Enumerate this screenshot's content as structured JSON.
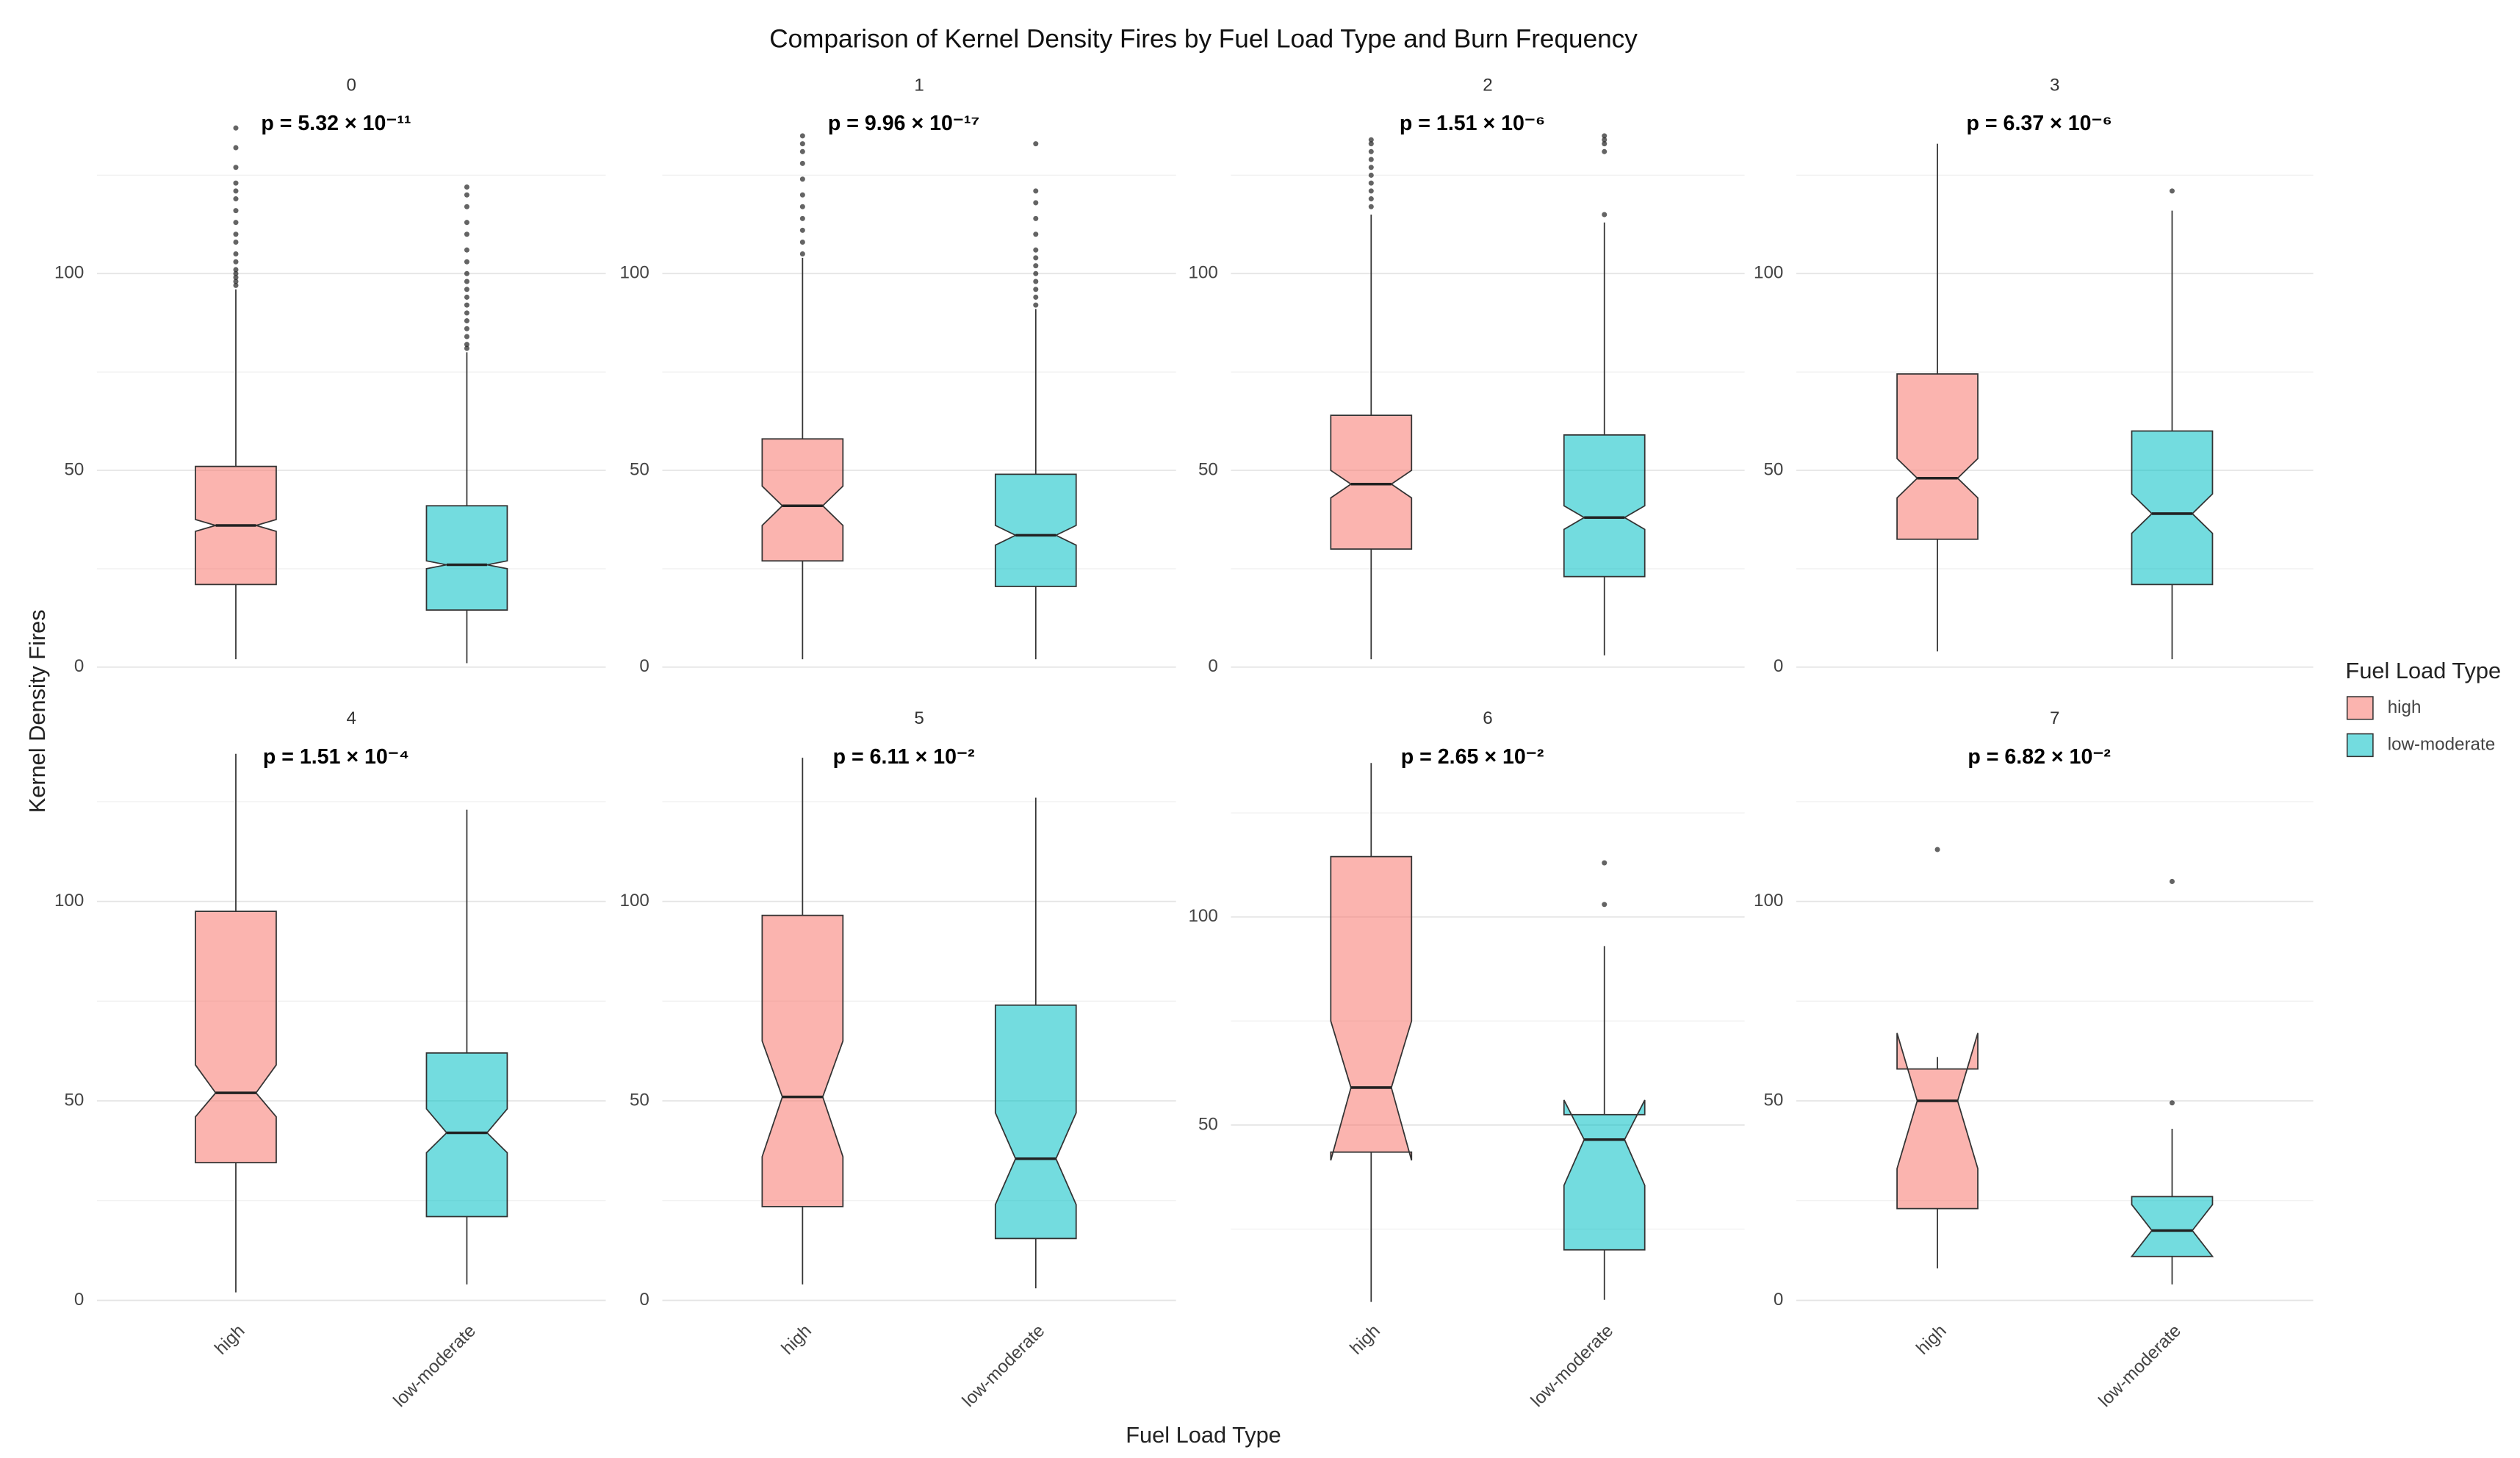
{
  "chart_data": {
    "type": "box",
    "title": "Comparison of Kernel Density Fires by Fuel Load Type and Burn Frequency",
    "xlabel": "Fuel Load Type",
    "ylabel": "Kernel Density Fires",
    "legend_title": "Fuel Load Type",
    "categories": [
      "high",
      "low-moderate"
    ],
    "series": [
      {
        "name": "high",
        "color": "#F8766D"
      },
      {
        "name": "low-moderate",
        "color": "#00BFC4"
      }
    ],
    "grid": true,
    "panels": [
      {
        "title": "0",
        "annotation": "p = 5.32 × 10⁻¹¹",
        "ylim": [
          -3,
          144
        ],
        "yticks": [
          0,
          50,
          100
        ],
        "boxes": [
          {
            "min": 2,
            "q1": 21,
            "notch_low": 34.5,
            "median": 36,
            "notch_high": 37.5,
            "q3": 51,
            "max": 96,
            "outliers": [
              97,
              98,
              99,
              100,
              101,
              103,
              105,
              108,
              110,
              113,
              116,
              119,
              121,
              123,
              127,
              132,
              137
            ]
          },
          {
            "min": 1,
            "q1": 14.5,
            "notch_low": 25,
            "median": 26,
            "notch_high": 27,
            "q3": 41,
            "max": 80,
            "outliers": [
              81,
              82,
              84,
              86,
              88,
              90,
              92,
              94,
              96,
              98,
              100,
              103,
              106,
              110,
              113,
              117,
              120,
              122
            ]
          }
        ]
      },
      {
        "title": "1",
        "annotation": "p = 9.96 × 10⁻¹⁷",
        "ylim": [
          -3,
          144
        ],
        "yticks": [
          0,
          50,
          100
        ],
        "boxes": [
          {
            "min": 2,
            "q1": 27,
            "notch_low": 36,
            "median": 41,
            "notch_high": 46,
            "q3": 58,
            "max": 104,
            "outliers": [
              105,
              108,
              111,
              114,
              117,
              120,
              124,
              128,
              131,
              133,
              135
            ]
          },
          {
            "min": 2,
            "q1": 20.5,
            "notch_low": 31,
            "median": 33.5,
            "notch_high": 36,
            "q3": 49,
            "max": 91,
            "outliers": [
              92,
              94,
              96,
              98,
              100,
              102,
              104,
              106,
              110,
              114,
              118,
              121,
              133
            ]
          }
        ]
      },
      {
        "title": "2",
        "annotation": "p = 1.51 × 10⁻⁶",
        "ylim": [
          -3,
          144
        ],
        "yticks": [
          0,
          50,
          100
        ],
        "boxes": [
          {
            "min": 2,
            "q1": 30,
            "notch_low": 43,
            "median": 46.5,
            "notch_high": 50,
            "q3": 64,
            "max": 115,
            "outliers": [
              117,
              119,
              121,
              123,
              125,
              127,
              129,
              131,
              133,
              134
            ]
          },
          {
            "min": 3,
            "q1": 23,
            "notch_low": 35,
            "median": 38,
            "notch_high": 41,
            "q3": 59,
            "max": 113,
            "outliers": [
              115,
              131,
              133,
              134,
              135
            ]
          }
        ]
      },
      {
        "title": "3",
        "annotation": "p = 6.37 × 10⁻⁶",
        "ylim": [
          -3,
          144
        ],
        "yticks": [
          0,
          50,
          100
        ],
        "boxes": [
          {
            "min": 4,
            "q1": 32.5,
            "notch_low": 43,
            "median": 48,
            "notch_high": 53,
            "q3": 74.5,
            "max": 133,
            "outliers": []
          },
          {
            "min": 2,
            "q1": 21,
            "notch_low": 34,
            "median": 39,
            "notch_high": 44,
            "q3": 60,
            "max": 116,
            "outliers": [
              121
            ]
          }
        ]
      },
      {
        "title": "4",
        "annotation": "p = 1.51 × 10⁻⁴",
        "ylim": [
          -3,
          142
        ],
        "yticks": [
          0,
          50,
          100
        ],
        "boxes": [
          {
            "min": 2,
            "q1": 34.5,
            "notch_low": 46,
            "median": 52,
            "notch_high": 59,
            "q3": 97.5,
            "max": 137,
            "outliers": []
          },
          {
            "min": 4,
            "q1": 21,
            "notch_low": 37,
            "median": 42,
            "notch_high": 48,
            "q3": 62,
            "max": 123,
            "outliers": []
          }
        ]
      },
      {
        "title": "5",
        "annotation": "p = 6.11 × 10⁻²",
        "ylim": [
          -3,
          142
        ],
        "yticks": [
          0,
          50,
          100
        ],
        "boxes": [
          {
            "min": 4,
            "q1": 23.5,
            "notch_low": 36,
            "median": 51,
            "notch_high": 65,
            "q3": 96.5,
            "max": 136,
            "outliers": []
          },
          {
            "min": 3,
            "q1": 15.5,
            "notch_low": 24,
            "median": 35.5,
            "notch_high": 47,
            "q3": 74,
            "max": 126,
            "outliers": []
          }
        ]
      },
      {
        "title": "6",
        "annotation": "p = 2.65 × 10⁻²",
        "ylim": [
          5,
          144
        ],
        "yticks": [
          50,
          100
        ],
        "boxes": [
          {
            "min": 7.5,
            "q1": 43.5,
            "notch_low": 41.5,
            "median": 59,
            "notch_high": 75,
            "q3": 114.5,
            "max": 137,
            "outliers": []
          },
          {
            "min": 8,
            "q1": 20,
            "notch_low": 35.5,
            "median": 46.5,
            "notch_high": 56,
            "q3": 52.5,
            "max": 93,
            "outliers": [
              103,
              113
            ]
          }
        ]
      },
      {
        "title": "7",
        "annotation": "p = 6.82 × 10⁻²",
        "ylim": [
          -3,
          142
        ],
        "yticks": [
          0,
          50,
          100
        ],
        "boxes": [
          {
            "min": 8,
            "q1": 23,
            "notch_low": 33,
            "median": 50,
            "notch_high": 67,
            "q3": 58,
            "max": 61,
            "outliers": [
              113
            ]
          },
          {
            "min": 4,
            "q1": 11,
            "notch_low": 11,
            "median": 17.5,
            "notch_high": 24,
            "q3": 26,
            "max": 43,
            "outliers": [
              49.5,
              105
            ]
          }
        ]
      }
    ]
  }
}
